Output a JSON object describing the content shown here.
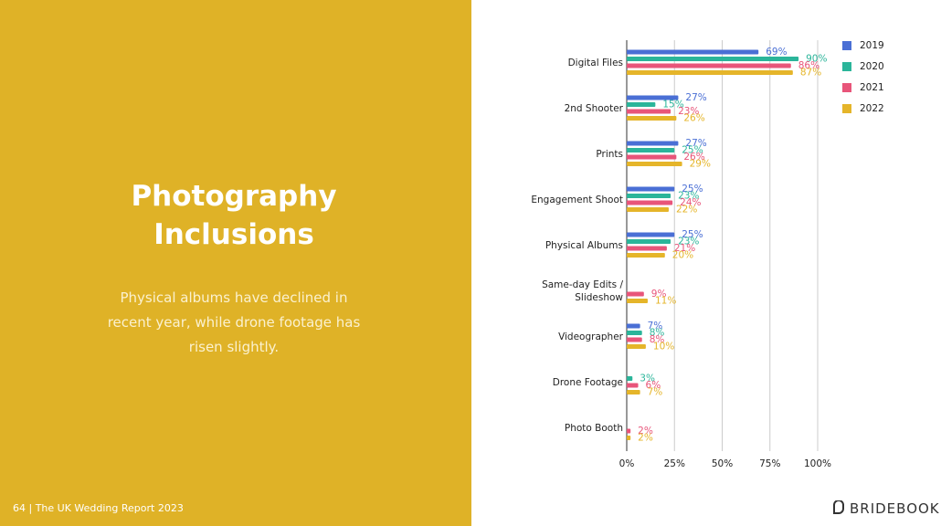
{
  "slide": {
    "title": "Photography Inclusions",
    "body": "Physical albums have declined in recent year, while drone footage has risen slightly.",
    "footer": "64 | The UK Wedding Report 2023",
    "logo": "BRIDEBOOK"
  },
  "chart_data": {
    "type": "bar",
    "orientation": "horizontal",
    "categories": [
      "Digital Files",
      "2nd Shooter",
      "Prints",
      "Engagement Shoot",
      "Physical Albums",
      "Same-day Edits / Slideshow",
      "Videographer",
      "Drone Footage",
      "Photo Booth"
    ],
    "series": [
      {
        "name": "2019",
        "color": "#4a6fd5",
        "values": [
          69,
          27,
          27,
          25,
          25,
          null,
          7,
          null,
          null
        ],
        "value_labels": [
          "69%",
          "27%",
          "27%",
          "25%",
          "25%",
          null,
          "7%",
          null,
          null
        ]
      },
      {
        "name": "2020",
        "color": "#2bb59a",
        "values": [
          90,
          15,
          25,
          23,
          23,
          null,
          8,
          3,
          null
        ],
        "value_labels": [
          "90%",
          "15%",
          "25%",
          "23%",
          "23%",
          null,
          "8%",
          "3%",
          null
        ]
      },
      {
        "name": "2021",
        "color": "#e8557a",
        "values": [
          86,
          23,
          26,
          24,
          21,
          9,
          8,
          6,
          2
        ],
        "value_labels": [
          "86%",
          "23%",
          "26%",
          "24%",
          "21%",
          "9%",
          "8%",
          "6%",
          "2%"
        ]
      },
      {
        "name": "2022",
        "color": "#e5b52a",
        "values": [
          87,
          26,
          29,
          22,
          20,
          11,
          10,
          7,
          2
        ],
        "value_labels": [
          "87%",
          "26%",
          "29%",
          "22%",
          "20%",
          "11%",
          "10%",
          "7%",
          "2%"
        ]
      }
    ],
    "xlim": [
      0,
      100
    ],
    "xticks": [
      {
        "value": 0,
        "label": "0%"
      },
      {
        "value": 25,
        "label": "25%"
      },
      {
        "value": 50,
        "label": "50%"
      },
      {
        "value": 75,
        "label": "75%"
      },
      {
        "value": 100,
        "label": "100%"
      }
    ],
    "grid": true,
    "legend": "right"
  }
}
